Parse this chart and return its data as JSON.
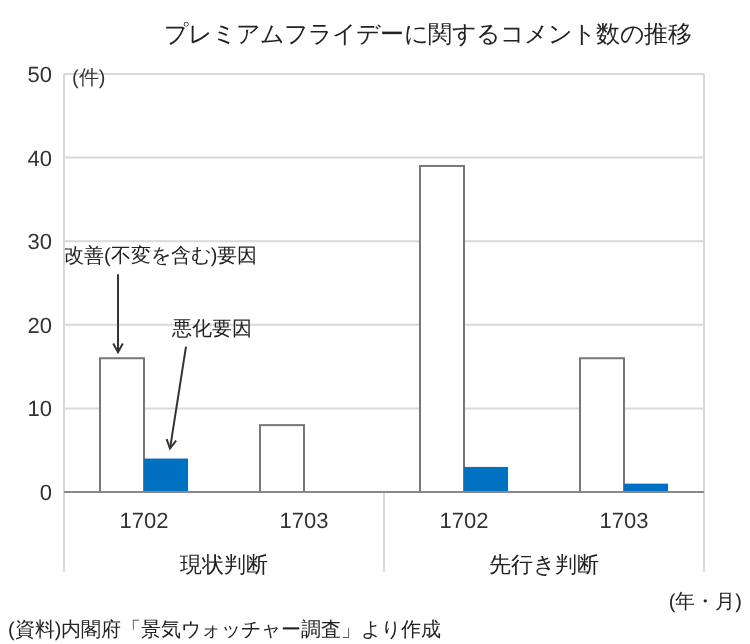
{
  "chart_data": {
    "type": "bar",
    "title": "プレミアムフライデーに関するコメント数の推移",
    "ylabel": "(件)",
    "categories": [
      "1702",
      "1703",
      "1702",
      "1703"
    ],
    "series": [
      {
        "name": "改善(不変を含む)要因",
        "color": "#ffffff",
        "values": [
          16,
          8,
          39,
          16
        ]
      },
      {
        "name": "悪化要因",
        "color": "#0070c0",
        "values": [
          4,
          0,
          3,
          1
        ]
      }
    ],
    "ylim": [
      0,
      50
    ],
    "yticks": [
      0,
      10,
      20,
      30,
      40,
      50
    ],
    "grid": "y",
    "annotations": [
      "現状判断",
      "先行き判断",
      "(年・月)",
      "(資料)内閣府「景気ウォッチャー調査」より作成"
    ]
  }
}
